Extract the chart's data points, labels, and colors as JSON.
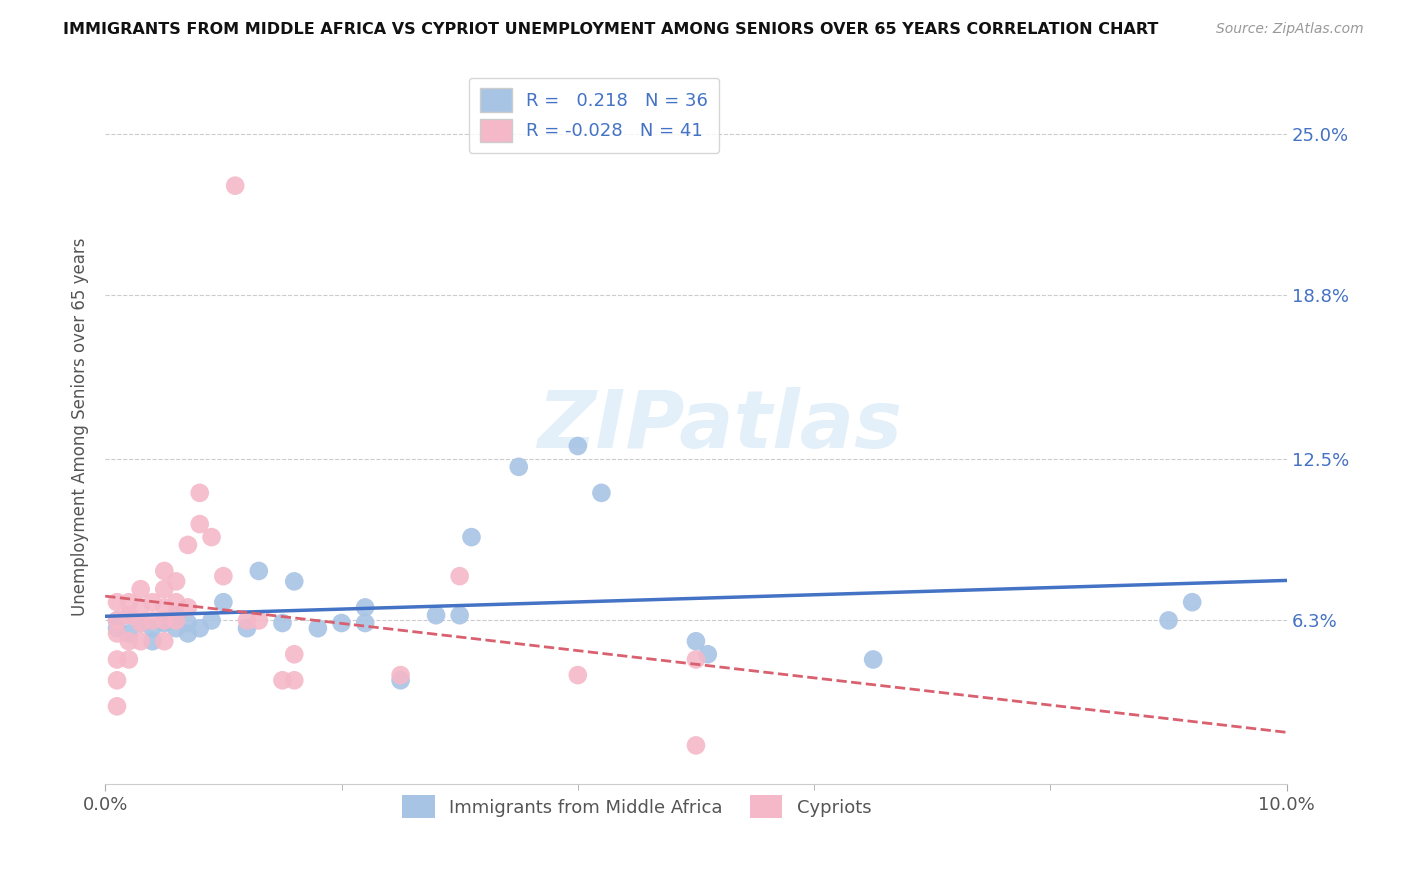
{
  "title": "IMMIGRANTS FROM MIDDLE AFRICA VS CYPRIOT UNEMPLOYMENT AMONG SENIORS OVER 65 YEARS CORRELATION CHART",
  "source": "Source: ZipAtlas.com",
  "ylabel": "Unemployment Among Seniors over 65 years",
  "ytick_labels": [
    "25.0%",
    "18.8%",
    "12.5%",
    "6.3%"
  ],
  "ytick_values": [
    0.25,
    0.188,
    0.125,
    0.063
  ],
  "xlim": [
    0.0,
    0.1
  ],
  "ylim": [
    0.0,
    0.275
  ],
  "legend_blue_r": "0.218",
  "legend_blue_n": "36",
  "legend_pink_r": "-0.028",
  "legend_pink_n": "41",
  "blue_color": "#a8c4e5",
  "pink_color": "#f5b8c8",
  "blue_line_color": "#4472c4",
  "pink_line_color": "#d9606e",
  "watermark_text": "ZIPatlas",
  "blue_scatter_x": [
    0.001,
    0.001,
    0.002,
    0.002,
    0.003,
    0.004,
    0.004,
    0.005,
    0.005,
    0.006,
    0.006,
    0.007,
    0.007,
    0.008,
    0.009,
    0.01,
    0.012,
    0.013,
    0.015,
    0.016,
    0.018,
    0.02,
    0.022,
    0.022,
    0.025,
    0.028,
    0.03,
    0.031,
    0.035,
    0.04,
    0.042,
    0.05,
    0.051,
    0.065,
    0.09,
    0.092
  ],
  "blue_scatter_y": [
    0.06,
    0.063,
    0.058,
    0.065,
    0.062,
    0.06,
    0.055,
    0.062,
    0.063,
    0.06,
    0.065,
    0.058,
    0.062,
    0.06,
    0.063,
    0.07,
    0.06,
    0.082,
    0.062,
    0.078,
    0.06,
    0.062,
    0.068,
    0.062,
    0.04,
    0.065,
    0.065,
    0.095,
    0.122,
    0.13,
    0.112,
    0.055,
    0.05,
    0.048,
    0.063,
    0.07
  ],
  "pink_scatter_x": [
    0.001,
    0.001,
    0.001,
    0.001,
    0.001,
    0.001,
    0.002,
    0.002,
    0.002,
    0.002,
    0.003,
    0.003,
    0.003,
    0.003,
    0.004,
    0.004,
    0.005,
    0.005,
    0.005,
    0.005,
    0.005,
    0.006,
    0.006,
    0.006,
    0.007,
    0.007,
    0.008,
    0.008,
    0.009,
    0.01,
    0.011,
    0.012,
    0.013,
    0.015,
    0.016,
    0.016,
    0.025,
    0.03,
    0.04,
    0.05,
    0.05
  ],
  "pink_scatter_y": [
    0.03,
    0.04,
    0.048,
    0.058,
    0.063,
    0.07,
    0.048,
    0.055,
    0.065,
    0.07,
    0.055,
    0.062,
    0.068,
    0.075,
    0.063,
    0.07,
    0.055,
    0.063,
    0.068,
    0.075,
    0.082,
    0.063,
    0.07,
    0.078,
    0.068,
    0.092,
    0.1,
    0.112,
    0.095,
    0.08,
    0.23,
    0.063,
    0.063,
    0.04,
    0.04,
    0.05,
    0.042,
    0.08,
    0.042,
    0.048,
    0.015
  ]
}
